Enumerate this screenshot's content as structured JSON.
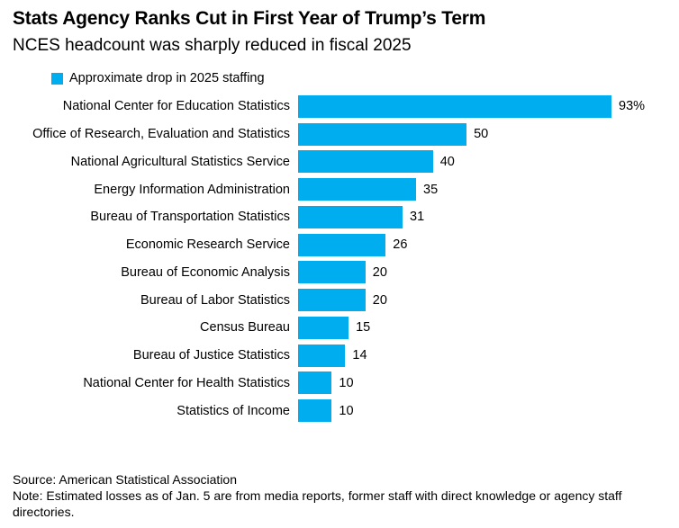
{
  "header": {
    "title": "Stats Agency Ranks Cut in First Year of Trump’s Term",
    "subtitle": "NCES headcount was sharply reduced in fiscal 2025"
  },
  "legend": {
    "label": "Approximate drop in 2025 staffing",
    "swatch_color": "#00adef"
  },
  "chart_data": {
    "type": "bar",
    "orientation": "horizontal",
    "title": "Stats Agency Ranks Cut in First Year of Trump’s Term",
    "subtitle": "NCES headcount was sharply reduced in fiscal 2025",
    "legend_entries": [
      "Approximate drop in 2025 staffing"
    ],
    "legend_position": "top-left",
    "categories": [
      "National Center for Education Statistics",
      "Office of Research, Evaluation and Statistics",
      "National Agricultural Statistics Service",
      "Energy Information Administration",
      "Bureau of Transportation Statistics",
      "Economic Research Service",
      "Bureau of Economic Analysis",
      "Bureau of Labor Statistics",
      "Census Bureau",
      "Bureau of Justice Statistics",
      "National Center for Health Statistics",
      "Statistics of Income"
    ],
    "values": [
      93,
      50,
      40,
      35,
      31,
      26,
      20,
      20,
      15,
      14,
      10,
      10
    ],
    "value_labels": [
      "93%",
      "50",
      "40",
      "35",
      "31",
      "26",
      "20",
      "20",
      "15",
      "14",
      "10",
      "10"
    ],
    "unit": "percent",
    "xlim": [
      0,
      100
    ],
    "bar_color": "#00adef",
    "grid": false
  },
  "footer": {
    "source": "Source: American Statistical Association",
    "note": "Note: Estimated losses as of Jan. 5 are from media reports, former staff with direct knowledge or agency staff directories."
  }
}
